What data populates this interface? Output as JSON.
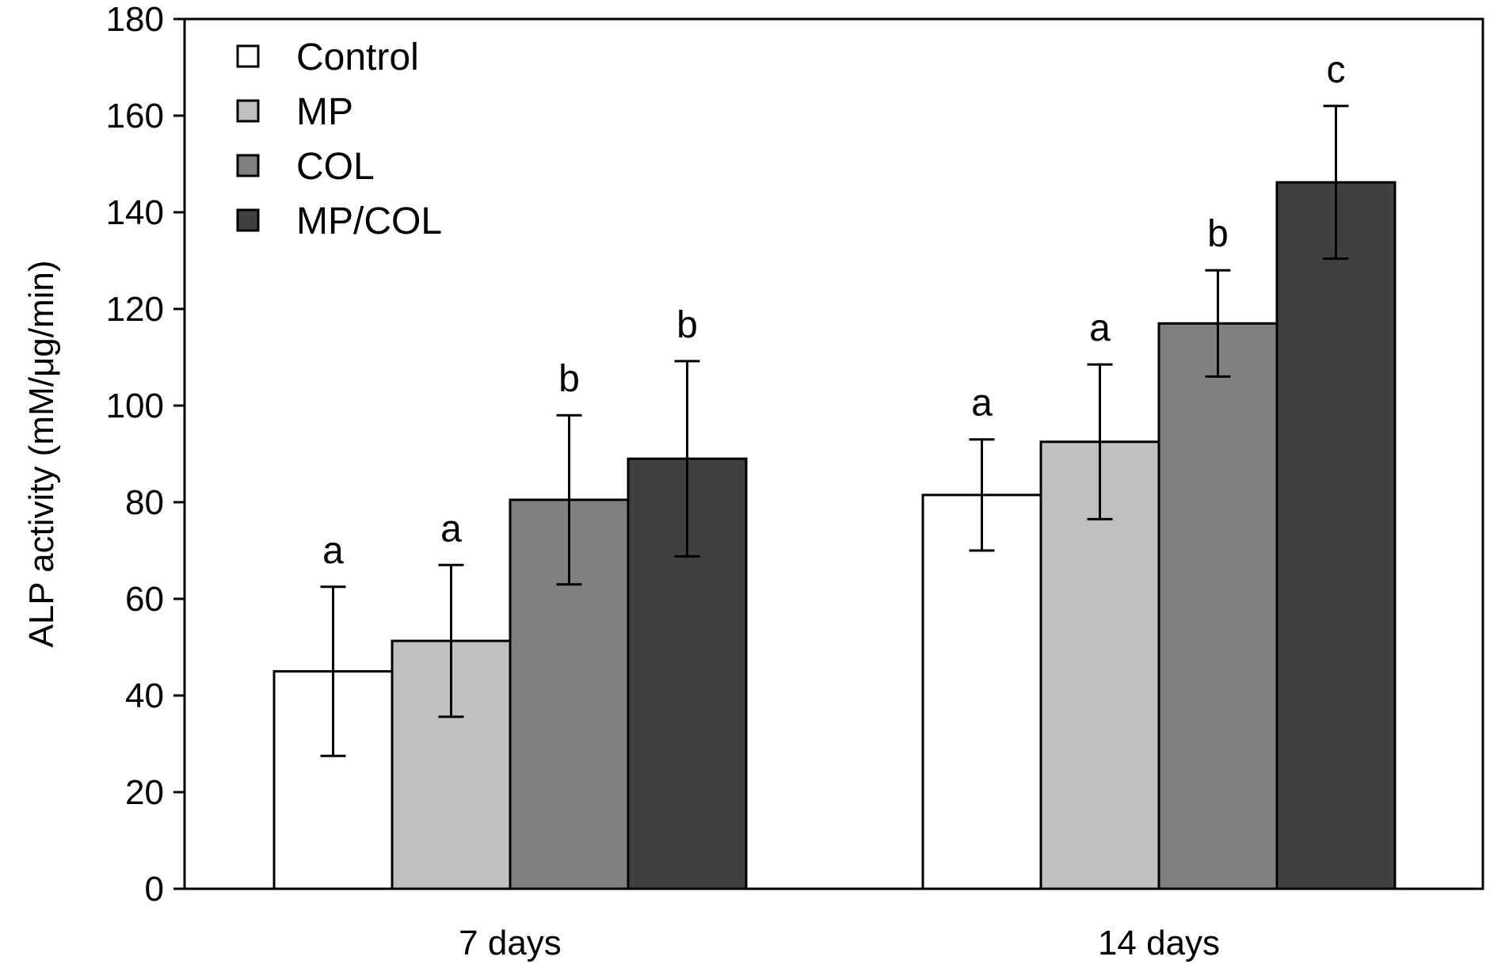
{
  "chart_data": {
    "type": "bar",
    "title": "",
    "xlabel": "",
    "ylabel": "ALP activity (mM/μg/min)",
    "ylim": [
      0,
      180
    ],
    "yticks": [
      0,
      20,
      40,
      60,
      80,
      100,
      120,
      140,
      160,
      180
    ],
    "ytick_labels": [
      "0",
      "20",
      "40",
      "60",
      "80",
      "100",
      "120",
      "140",
      "160",
      "180"
    ],
    "grid": false,
    "legend_position": "top-left",
    "categories": [
      "7 days",
      "14 days"
    ],
    "series": [
      {
        "name": "Control",
        "color": "#ffffff",
        "values": [
          45,
          81.5
        ],
        "errors": [
          17.5,
          11.5
        ],
        "labels": [
          "a",
          "a"
        ]
      },
      {
        "name": "MP",
        "color": "#c0c0c0",
        "values": [
          51.3,
          92.5
        ],
        "errors": [
          15.7,
          16
        ],
        "labels": [
          "a",
          "a"
        ]
      },
      {
        "name": "COL",
        "color": "#808080",
        "values": [
          80.5,
          117
        ],
        "errors": [
          17.5,
          11
        ],
        "labels": [
          "b",
          "b"
        ]
      },
      {
        "name": "MP/COL",
        "color": "#404040",
        "values": [
          89,
          146.2
        ],
        "errors": [
          20.2,
          15.8
        ],
        "labels": [
          "b",
          "c"
        ]
      }
    ]
  }
}
